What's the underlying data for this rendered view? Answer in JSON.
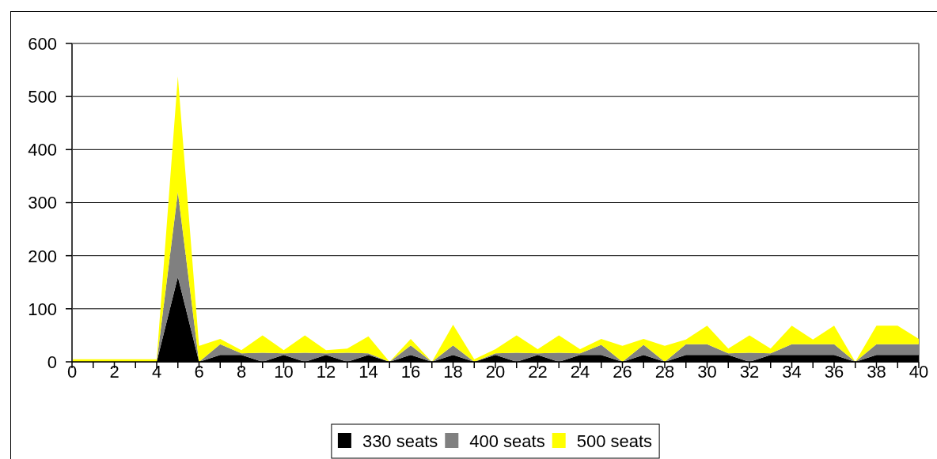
{
  "chart_data": {
    "type": "area",
    "stacked": true,
    "x": [
      0,
      1,
      2,
      3,
      4,
      5,
      6,
      7,
      8,
      9,
      10,
      11,
      12,
      13,
      14,
      15,
      16,
      17,
      18,
      19,
      20,
      21,
      22,
      23,
      24,
      25,
      26,
      27,
      28,
      29,
      30,
      31,
      32,
      33,
      34,
      35,
      36,
      37,
      38,
      39,
      40
    ],
    "series": [
      {
        "name": "330 seats",
        "color": "#000000",
        "values": [
          0,
          0,
          0,
          0,
          0,
          160,
          0,
          13,
          13,
          0,
          13,
          0,
          13,
          0,
          13,
          0,
          13,
          0,
          13,
          0,
          13,
          0,
          13,
          0,
          13,
          13,
          0,
          13,
          0,
          13,
          13,
          13,
          0,
          13,
          13,
          13,
          13,
          0,
          13,
          13,
          13
        ]
      },
      {
        "name": "400 seats",
        "color": "#808080",
        "values": [
          0,
          0,
          0,
          0,
          0,
          160,
          0,
          20,
          3,
          17,
          3,
          17,
          3,
          17,
          3,
          0,
          18,
          0,
          18,
          0,
          3,
          17,
          3,
          17,
          3,
          19,
          0,
          19,
          0,
          20,
          20,
          3,
          17,
          3,
          20,
          20,
          20,
          0,
          20,
          20,
          20
        ]
      },
      {
        "name": "500 seats",
        "color": "#ffff00",
        "values": [
          5,
          5,
          5,
          5,
          5,
          218,
          30,
          10,
          6,
          33,
          6,
          33,
          6,
          8,
          32,
          0,
          12,
          0,
          39,
          5,
          8,
          33,
          8,
          33,
          8,
          11,
          30,
          11,
          30,
          9,
          35,
          9,
          33,
          9,
          35,
          9,
          35,
          0,
          35,
          35,
          10
        ]
      }
    ],
    "xlim": [
      0,
      40
    ],
    "xticks": [
      0,
      {
        "value": 1,
        "label": null
      },
      2,
      {
        "value": 3,
        "label": null
      },
      4,
      {
        "value": 5,
        "label": null
      },
      6,
      {
        "value": 7,
        "label": null
      },
      8,
      {
        "value": 9,
        "label": null
      },
      10,
      {
        "value": 11,
        "label": null
      },
      12,
      {
        "value": 13,
        "label": null
      },
      14,
      {
        "value": 15,
        "label": null
      },
      16,
      {
        "value": 17,
        "label": null
      },
      18,
      {
        "value": 19,
        "label": null
      },
      20,
      {
        "value": 21,
        "label": null
      },
      22,
      {
        "value": 23,
        "label": null
      },
      24,
      {
        "value": 25,
        "label": null
      },
      26,
      {
        "value": 27,
        "label": null
      },
      28,
      {
        "value": 29,
        "label": null
      },
      30,
      {
        "value": 31,
        "label": null
      },
      32,
      {
        "value": 33,
        "label": null
      },
      34,
      {
        "value": 35,
        "label": null
      },
      36,
      {
        "value": 37,
        "label": null
      },
      38,
      {
        "value": 39,
        "label": null
      },
      40
    ],
    "ylim": [
      0,
      600
    ],
    "yticks": [
      0,
      100,
      200,
      300,
      400,
      500,
      600
    ],
    "grid": "y",
    "legend": "bottom"
  }
}
